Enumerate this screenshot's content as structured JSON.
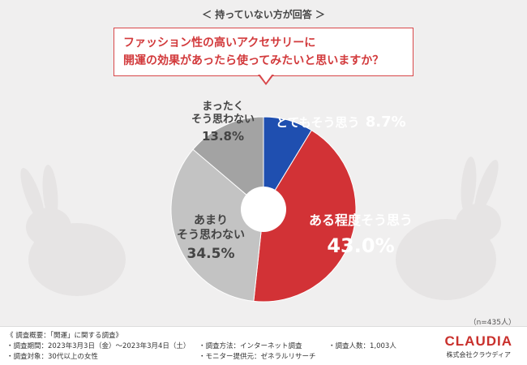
{
  "header_note": "＜ 持っていない方が回答 ＞",
  "question": {
    "line1": "ファッション性の高いアクセサリーに",
    "line2": "開運の効果があったら使ってみたいと思いますか？"
  },
  "chart_data": {
    "type": "pie",
    "title": "ファッション性の高いアクセサリーに開運の効果があったら使ってみたいと思いますか？",
    "slices": [
      {
        "label": "とてもそう思う",
        "value": 8.7,
        "display": "8.7%",
        "color": "#1f4fb0"
      },
      {
        "label": "ある程度そう思う",
        "value": 43.0,
        "display": "43.0%",
        "color": "#d23236"
      },
      {
        "label_line1": "あまり",
        "label_line2": "そう思わない",
        "label": "あまりそう思わない",
        "value": 34.5,
        "display": "34.5%",
        "color": "#c3c3c3"
      },
      {
        "label_line1": "まったく",
        "label_line2": "そう思わない",
        "label": "まったくそう思わない",
        "value": 13.8,
        "display": "13.8%",
        "color": "#a3a3a3"
      }
    ],
    "sample": "（n=435人）"
  },
  "footer": {
    "title": "《 調査概要：「開運」に関する調査》",
    "period": "・調査期間：2023年3月3日（金）〜2023年3月4日（土）",
    "target": "・調査対象：30代以上の女性",
    "method": "・調査方法：インターネット調査",
    "provider": "・モニター提供元：ゼネラルリサーチ",
    "count": "・調査人数：1,003人"
  },
  "brand": {
    "logo": "CLAUDIA",
    "company": "株式会社クラウディア"
  }
}
